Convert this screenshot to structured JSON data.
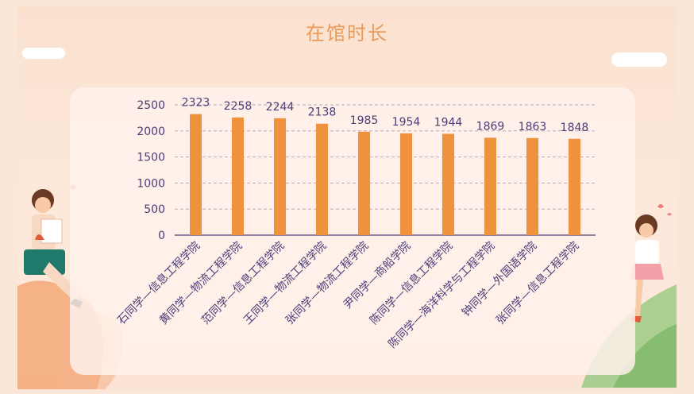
{
  "slide": {
    "title": "在馆时长"
  },
  "colors": {
    "bar": "#f0923d",
    "axis_text": "#4a3d78",
    "title": "#e89a5c"
  },
  "chart_data": {
    "type": "bar",
    "title": "在馆时长",
    "categories": [
      "石同学—信息工程学院",
      "黄同学—物流工程学院",
      "范同学—信息工程学院",
      "王同学—物流工程学院",
      "张同学—物流工程学院",
      "尹同学—商船学院",
      "陈同学—信息工程学院",
      "陈同学—海洋科学与工程学院",
      "钟同学—外国语学院",
      "张同学—信息工程学院"
    ],
    "values": [
      2323,
      2258,
      2244,
      2138,
      1985,
      1954,
      1944,
      1869,
      1863,
      1848
    ],
    "yticks": [
      0,
      500,
      1000,
      1500,
      2000,
      2500
    ],
    "ylim": [
      0,
      2500
    ],
    "grid": true,
    "data_labels": true
  }
}
